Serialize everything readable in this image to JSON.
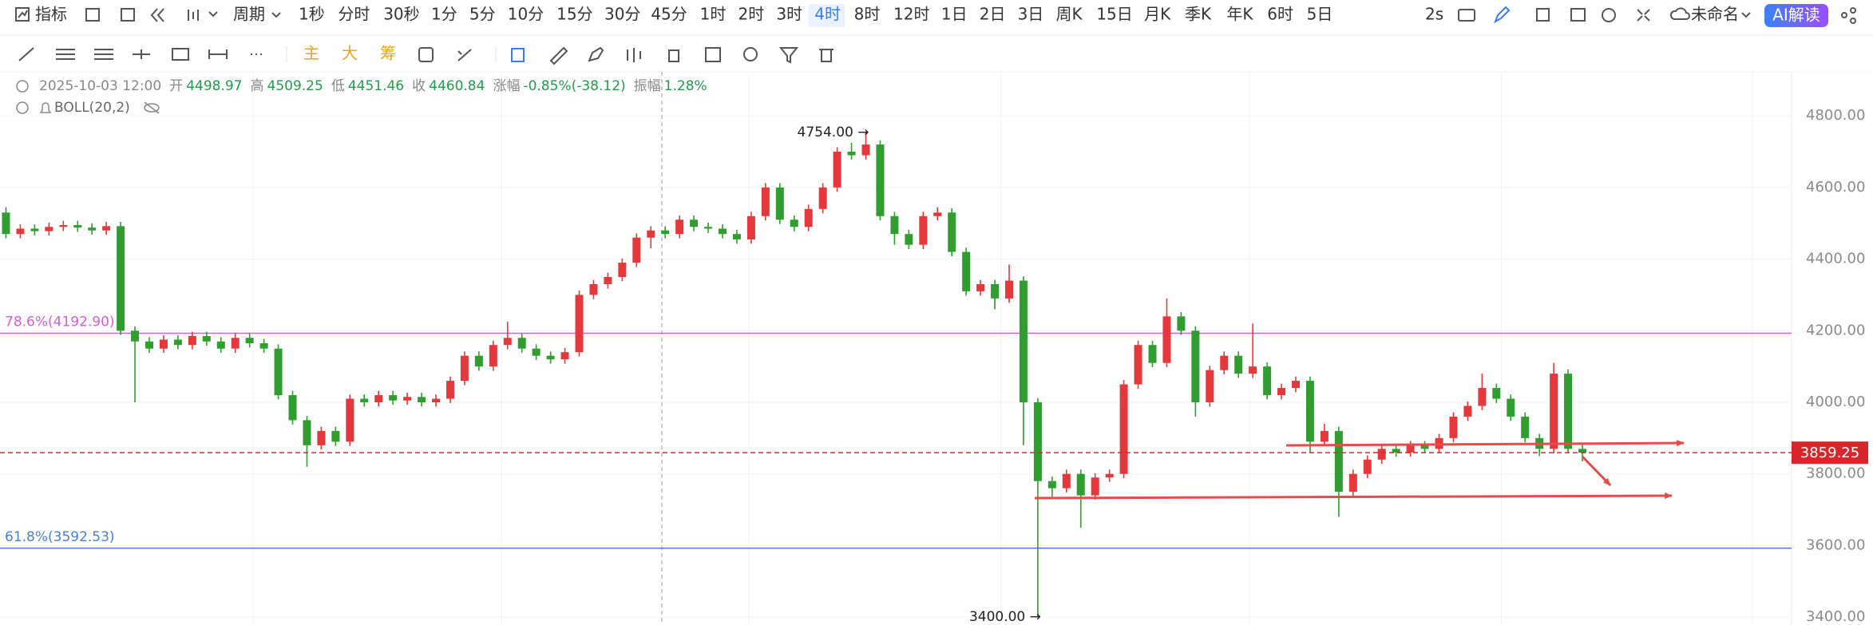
{
  "toolbar": {
    "indicator": "指标",
    "period": "周期",
    "intervals": [
      "1秒",
      "分时",
      "30秒",
      "1分",
      "5分",
      "10分",
      "15分",
      "30分",
      "45分",
      "1时",
      "2时",
      "3时",
      "4时",
      "8时",
      "12时",
      "1日",
      "2日",
      "3日",
      "周K",
      "15日",
      "月K",
      "季K",
      "年K",
      "6时",
      "5日"
    ],
    "active_interval": 12,
    "refresh": "2s",
    "doc_name": "未命名",
    "ai_button": "AI解读"
  },
  "drawing_tools": {
    "main": "主",
    "big": "大",
    "chips": "筹"
  },
  "info": {
    "datetime": "2025-10-03 12:00",
    "fields": [
      {
        "label": "开",
        "value": "4498.97"
      },
      {
        "label": "高",
        "value": "4509.25"
      },
      {
        "label": "低",
        "value": "4451.46"
      },
      {
        "label": "收",
        "value": "4460.84"
      },
      {
        "label": "涨幅",
        "value": "-0.85%(-38.12)"
      },
      {
        "label": "振幅",
        "value": "1.28%"
      }
    ],
    "indicator": "BOLL(20,2)"
  },
  "chart_data": {
    "type": "candlestick",
    "up_color": "#e5383b",
    "down_color": "#2f9e2f",
    "open": [
      4530,
      4470,
      4485,
      4478,
      4490,
      4495,
      4488,
      4480,
      4492,
      4200,
      4170,
      4150,
      4175,
      4160,
      4185,
      4170,
      4150,
      4180,
      4165,
      4150,
      4020,
      3950,
      3880,
      3920,
      3890,
      4010,
      4000,
      4020,
      4005,
      4015,
      4000,
      4010,
      4060,
      4130,
      4100,
      4160,
      4180,
      4150,
      4130,
      4120,
      4140,
      4300,
      4330,
      4350,
      4390,
      4460,
      4480,
      4470,
      4510,
      4490,
      4485,
      4470,
      4455,
      4520,
      4600,
      4510,
      4490,
      4540,
      4600,
      4700,
      4690,
      4720,
      4520,
      4470,
      4440,
      4520,
      4530,
      4420,
      4310,
      4330,
      4290,
      4340,
      4000,
      3780,
      3760,
      3800,
      3740,
      3790,
      3800,
      4050,
      4160,
      4110,
      4240,
      4200,
      4000,
      4090,
      4130,
      4080,
      4100,
      4020,
      4040,
      4060,
      3890,
      3920,
      3750,
      3800,
      3840,
      3870,
      3860,
      3880,
      3870,
      3900,
      3960,
      3990,
      4040,
      4010,
      3960,
      3900,
      3870,
      4080,
      3870
    ],
    "high": [
      4545,
      4497,
      4497,
      4502,
      4507,
      4507,
      4500,
      4504,
      4504,
      4212,
      4182,
      4187,
      4187,
      4197,
      4197,
      4182,
      4192,
      4192,
      4177,
      4162,
      4032,
      3962,
      3932,
      3932,
      4022,
      4022,
      4032,
      4032,
      4027,
      4027,
      4022,
      4072,
      4142,
      4142,
      4172,
      4225,
      4192,
      4162,
      4142,
      4152,
      4312,
      4342,
      4362,
      4402,
      4472,
      4492,
      4492,
      4522,
      4522,
      4502,
      4497,
      4482,
      4532,
      4612,
      4612,
      4522,
      4552,
      4612,
      4712,
      4725,
      4754,
      4732,
      4532,
      4482,
      4532,
      4545,
      4542,
      4432,
      4342,
      4342,
      4385,
      4352,
      4012,
      3792,
      3812,
      3812,
      3802,
      3812,
      4062,
      4172,
      4172,
      4290,
      4252,
      4212,
      4102,
      4142,
      4142,
      4220,
      4112,
      4052,
      4072,
      4072,
      3940,
      3932,
      3812,
      3852,
      3882,
      3882,
      3892,
      3892,
      3912,
      3972,
      4002,
      4080,
      4052,
      4022,
      3972,
      3912,
      4110,
      4092,
      3882
    ],
    "low": [
      4458,
      4458,
      4466,
      4466,
      4478,
      4476,
      4468,
      4468,
      4188,
      4000,
      4138,
      4138,
      4148,
      4148,
      4158,
      4138,
      4138,
      4153,
      4138,
      4008,
      3938,
      3820,
      3868,
      3878,
      3878,
      3988,
      3988,
      3993,
      3993,
      3988,
      3988,
      3998,
      4048,
      4088,
      4088,
      4148,
      4138,
      4118,
      4108,
      4108,
      4128,
      4288,
      4318,
      4338,
      4378,
      4430,
      4458,
      4458,
      4478,
      4473,
      4458,
      4443,
      4443,
      4508,
      4498,
      4478,
      4478,
      4528,
      4588,
      4678,
      4678,
      4508,
      4440,
      4428,
      4428,
      4508,
      4408,
      4298,
      4298,
      4260,
      4278,
      3880,
      3400,
      3730,
      3748,
      3650,
      3728,
      3778,
      3788,
      4038,
      4098,
      4098,
      4188,
      3960,
      3988,
      4078,
      4068,
      4068,
      4008,
      4008,
      4028,
      3860,
      3878,
      3680,
      3738,
      3788,
      3828,
      3848,
      3848,
      3858,
      3858,
      3888,
      3948,
      3978,
      3998,
      3948,
      3888,
      3850,
      3858,
      3858,
      3835
    ],
    "close": [
      4470,
      4485,
      4478,
      4490,
      4495,
      4488,
      4480,
      4492,
      4200,
      4170,
      4150,
      4175,
      4160,
      4185,
      4170,
      4150,
      4180,
      4165,
      4150,
      4020,
      3950,
      3880,
      3920,
      3890,
      4010,
      4000,
      4020,
      4005,
      4015,
      4000,
      4010,
      4060,
      4130,
      4100,
      4160,
      4180,
      4150,
      4130,
      4120,
      4140,
      4300,
      4330,
      4350,
      4390,
      4460,
      4480,
      4470,
      4510,
      4490,
      4485,
      4470,
      4455,
      4520,
      4600,
      4510,
      4490,
      4540,
      4600,
      4700,
      4690,
      4720,
      4520,
      4470,
      4440,
      4520,
      4530,
      4420,
      4310,
      4330,
      4290,
      4340,
      4000,
      3780,
      3760,
      3800,
      3740,
      3790,
      3800,
      4050,
      4160,
      4110,
      4240,
      4200,
      4000,
      4090,
      4130,
      4080,
      4100,
      4020,
      4040,
      4060,
      3890,
      3920,
      3750,
      3800,
      3840,
      3870,
      3860,
      3880,
      3870,
      3900,
      3960,
      3990,
      4040,
      4010,
      3960,
      3900,
      3870,
      4080,
      3870,
      3859.25
    ],
    "ylim": [
      3378,
      4923
    ],
    "yticks": [
      {
        "value": 3400,
        "label": "3400.00"
      },
      {
        "value": 3600,
        "label": "3600.00"
      },
      {
        "value": 3800,
        "label": "3800.00"
      },
      {
        "value": 4000,
        "label": "4000.00"
      },
      {
        "value": 4200,
        "label": "4200.00"
      },
      {
        "value": 4400,
        "label": "4400.00"
      },
      {
        "value": 4600,
        "label": "4600.00"
      },
      {
        "value": 4800,
        "label": "4800.00"
      }
    ],
    "grid": true,
    "levels": [
      {
        "label": "78.6%(4192.90)",
        "value": 4192.9,
        "color": "#d35ed6"
      },
      {
        "label": "61.8%(3592.53)",
        "value": 3592.53,
        "color": "#4a7fd6"
      }
    ],
    "last_price": 3859.25,
    "last_price_color": "#d9262b",
    "extremes": [
      {
        "value": 4754,
        "label": "4754.00 →"
      },
      {
        "value": 3400,
        "label": "3400.00 →"
      }
    ]
  }
}
